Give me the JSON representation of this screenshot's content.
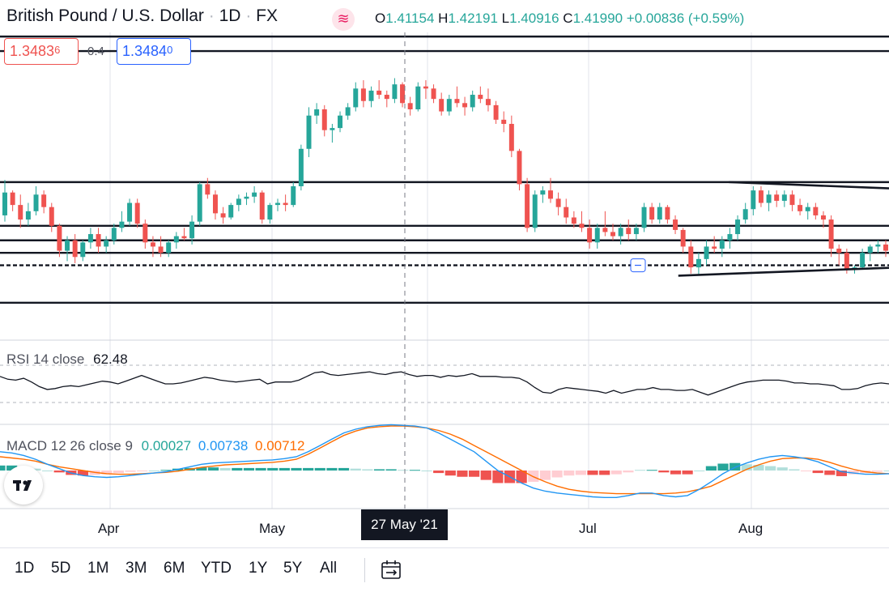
{
  "header": {
    "symbol_title": "British Pound / U.S. Dollar",
    "interval": "1D",
    "exchange": "FX",
    "sep": "·",
    "feed_icon": "data-feed-icon",
    "ohlc": {
      "o_label": "O",
      "o_value": "1.41154",
      "h_label": "H",
      "h_value": "1.42191",
      "l_label": "L",
      "l_value": "1.40916",
      "c_label": "C",
      "c_value": "1.41990",
      "change": "+0.00836 (+0.59%)"
    }
  },
  "trade": {
    "sell_main": "1.3483",
    "sell_small": "6",
    "spread": "0.4",
    "buy_main": "1.3484",
    "buy_small": "0"
  },
  "rsi": {
    "label": "RSI 14 close",
    "value": "62.48"
  },
  "macd": {
    "label": "MACD 12 26 close 9",
    "hist_value": "0.00027",
    "macd_value": "0.00738",
    "signal_value": "0.00712"
  },
  "x_axis": {
    "labels": [
      "Apr",
      "May",
      "Jul",
      "Aug"
    ],
    "crosshair_label": "27 May '21"
  },
  "toolbar": {
    "timeframes": [
      "1D",
      "5D",
      "1M",
      "3M",
      "6M",
      "YTD",
      "1Y",
      "5Y",
      "All"
    ],
    "date_range_icon": "calendar-range-icon"
  },
  "colors": {
    "up": "#26a69a",
    "down": "#ef5350",
    "macd": "#2196f3",
    "signal": "#ff6d00",
    "rsi": "#131722"
  },
  "chart_data": {
    "type": "candlestick",
    "title": "British Pound / U.S. Dollar · 1D · FX",
    "ylim": [
      1.352,
      1.426
    ],
    "x_tick_labels": [
      "Apr",
      "May",
      "Jul",
      "Aug"
    ],
    "candles_ohlc": [
      [
        1.382,
        1.3905,
        1.3805,
        1.3875
      ],
      [
        1.3875,
        1.388,
        1.383,
        1.3845
      ],
      [
        1.3845,
        1.387,
        1.379,
        1.381
      ],
      [
        1.381,
        1.385,
        1.3795,
        1.383
      ],
      [
        1.383,
        1.389,
        1.382,
        1.387
      ],
      [
        1.387,
        1.388,
        1.3825,
        1.384
      ],
      [
        1.384,
        1.385,
        1.378,
        1.3795
      ],
      [
        1.3795,
        1.38,
        1.372,
        1.3735
      ],
      [
        1.3735,
        1.377,
        1.371,
        1.376
      ],
      [
        1.376,
        1.3775,
        1.3705,
        1.372
      ],
      [
        1.372,
        1.376,
        1.371,
        1.3755
      ],
      [
        1.3755,
        1.379,
        1.374,
        1.3775
      ],
      [
        1.3775,
        1.379,
        1.373,
        1.3745
      ],
      [
        1.3745,
        1.377,
        1.373,
        1.376
      ],
      [
        1.376,
        1.38,
        1.375,
        1.379
      ],
      [
        1.379,
        1.383,
        1.378,
        1.3805
      ],
      [
        1.3805,
        1.386,
        1.3795,
        1.385
      ],
      [
        1.385,
        1.386,
        1.379,
        1.38
      ],
      [
        1.38,
        1.381,
        1.374,
        1.3755
      ],
      [
        1.3755,
        1.377,
        1.372,
        1.3745
      ],
      [
        1.3745,
        1.377,
        1.372,
        1.373
      ],
      [
        1.373,
        1.376,
        1.372,
        1.3755
      ],
      [
        1.3755,
        1.378,
        1.374,
        1.377
      ],
      [
        1.377,
        1.379,
        1.376,
        1.3765
      ],
      [
        1.3765,
        1.382,
        1.375,
        1.3805
      ],
      [
        1.3805,
        1.39,
        1.3795,
        1.3895
      ],
      [
        1.3895,
        1.391,
        1.386,
        1.387
      ],
      [
        1.387,
        1.388,
        1.381,
        1.3825
      ],
      [
        1.3825,
        1.384,
        1.38,
        1.3815
      ],
      [
        1.3815,
        1.385,
        1.381,
        1.3845
      ],
      [
        1.3845,
        1.387,
        1.383,
        1.386
      ],
      [
        1.386,
        1.3875,
        1.3845,
        1.3865
      ],
      [
        1.3865,
        1.389,
        1.385,
        1.3875
      ],
      [
        1.3875,
        1.388,
        1.38,
        1.381
      ],
      [
        1.381,
        1.385,
        1.38,
        1.3845
      ],
      [
        1.3845,
        1.386,
        1.383,
        1.385
      ],
      [
        1.385,
        1.387,
        1.383,
        1.3845
      ],
      [
        1.3845,
        1.39,
        1.384,
        1.389
      ],
      [
        1.389,
        1.399,
        1.388,
        1.398
      ],
      [
        1.398,
        1.408,
        1.396,
        1.406
      ],
      [
        1.406,
        1.409,
        1.404,
        1.4075
      ],
      [
        1.4075,
        1.4085,
        1.401,
        1.4025
      ],
      [
        1.4025,
        1.404,
        1.3995,
        1.403
      ],
      [
        1.403,
        1.407,
        1.402,
        1.406
      ],
      [
        1.406,
        1.409,
        1.405,
        1.408
      ],
      [
        1.408,
        1.414,
        1.407,
        1.4125
      ],
      [
        1.4125,
        1.4145,
        1.408,
        1.4095
      ],
      [
        1.4095,
        1.413,
        1.408,
        1.412
      ],
      [
        1.412,
        1.4145,
        1.41,
        1.411
      ],
      [
        1.411,
        1.412,
        1.408,
        1.41
      ],
      [
        1.41,
        1.415,
        1.409,
        1.4135
      ],
      [
        1.4135,
        1.414,
        1.408,
        1.409
      ],
      [
        1.409,
        1.4105,
        1.406,
        1.4075
      ],
      [
        1.4075,
        1.414,
        1.407,
        1.413
      ],
      [
        1.413,
        1.4145,
        1.41,
        1.4125
      ],
      [
        1.4125,
        1.4135,
        1.409,
        1.41
      ],
      [
        1.41,
        1.4115,
        1.406,
        1.407
      ],
      [
        1.407,
        1.411,
        1.406,
        1.41
      ],
      [
        1.41,
        1.413,
        1.408,
        1.409
      ],
      [
        1.409,
        1.4105,
        1.406,
        1.408
      ],
      [
        1.408,
        1.412,
        1.407,
        1.411
      ],
      [
        1.411,
        1.413,
        1.409,
        1.41
      ],
      [
        1.41,
        1.4125,
        1.407,
        1.4085
      ],
      [
        1.4085,
        1.4095,
        1.404,
        1.405
      ],
      [
        1.405,
        1.407,
        1.402,
        1.404
      ],
      [
        1.404,
        1.406,
        1.396,
        1.3975
      ],
      [
        1.3975,
        1.398,
        1.388,
        1.3895
      ],
      [
        1.3895,
        1.391,
        1.378,
        1.379
      ],
      [
        1.379,
        1.388,
        1.378,
        1.387
      ],
      [
        1.387,
        1.389,
        1.385,
        1.388
      ],
      [
        1.388,
        1.391,
        1.385,
        1.386
      ],
      [
        1.386,
        1.3875,
        1.382,
        1.384
      ],
      [
        1.384,
        1.386,
        1.38,
        1.3815
      ],
      [
        1.3815,
        1.383,
        1.379,
        1.38
      ],
      [
        1.38,
        1.383,
        1.378,
        1.379
      ],
      [
        1.379,
        1.381,
        1.374,
        1.3755
      ],
      [
        1.3755,
        1.38,
        1.374,
        1.379
      ],
      [
        1.379,
        1.383,
        1.377,
        1.378
      ],
      [
        1.378,
        1.38,
        1.376,
        1.377
      ],
      [
        1.377,
        1.38,
        1.375,
        1.379
      ],
      [
        1.379,
        1.381,
        1.376,
        1.3775
      ],
      [
        1.3775,
        1.38,
        1.376,
        1.379
      ],
      [
        1.379,
        1.385,
        1.378,
        1.384
      ],
      [
        1.384,
        1.385,
        1.38,
        1.381
      ],
      [
        1.381,
        1.385,
        1.38,
        1.384
      ],
      [
        1.384,
        1.3845,
        1.38,
        1.381
      ],
      [
        1.381,
        1.382,
        1.3775,
        1.3785
      ],
      [
        1.3785,
        1.379,
        1.373,
        1.3745
      ],
      [
        1.3745,
        1.376,
        1.368,
        1.3695
      ],
      [
        1.3695,
        1.373,
        1.3675,
        1.3715
      ],
      [
        1.3715,
        1.376,
        1.37,
        1.3745
      ],
      [
        1.3745,
        1.377,
        1.373,
        1.374
      ],
      [
        1.374,
        1.377,
        1.372,
        1.376
      ],
      [
        1.376,
        1.379,
        1.374,
        1.3775
      ],
      [
        1.3775,
        1.382,
        1.376,
        1.381
      ],
      [
        1.381,
        1.385,
        1.38,
        1.3835
      ],
      [
        1.3835,
        1.389,
        1.382,
        1.388
      ],
      [
        1.388,
        1.389,
        1.384,
        1.385
      ],
      [
        1.385,
        1.388,
        1.383,
        1.387
      ],
      [
        1.387,
        1.388,
        1.384,
        1.3855
      ],
      [
        1.3855,
        1.388,
        1.384,
        1.387
      ],
      [
        1.387,
        1.388,
        1.383,
        1.3845
      ],
      [
        1.3845,
        1.386,
        1.382,
        1.383
      ],
      [
        1.383,
        1.385,
        1.381,
        1.384
      ],
      [
        1.384,
        1.385,
        1.381,
        1.382
      ],
      [
        1.382,
        1.383,
        1.379,
        1.381
      ],
      [
        1.381,
        1.382,
        1.372,
        1.374
      ],
      [
        1.374,
        1.375,
        1.37,
        1.373
      ],
      [
        1.373,
        1.374,
        1.368,
        1.369
      ],
      [
        1.369,
        1.37,
        1.368,
        1.3695
      ],
      [
        1.3695,
        1.374,
        1.369,
        1.373
      ],
      [
        1.373,
        1.375,
        1.371,
        1.3745
      ],
      [
        1.3745,
        1.376,
        1.373,
        1.375
      ],
      [
        1.375,
        1.376,
        1.372,
        1.3735
      ]
    ],
    "horizontal_levels": [
      1.425,
      1.4215,
      1.39,
      1.3795,
      1.376,
      1.373,
      1.37,
      1.361
    ],
    "dashed_level": 1.37,
    "trendlines": [
      {
        "from": [
          0.82,
          1.39
        ],
        "to": [
          1.0,
          1.3885
        ]
      },
      {
        "from": [
          0.763,
          1.3675
        ],
        "to": [
          1.0,
          1.3694
        ]
      }
    ],
    "rsi_values": [
      58,
      55,
      54,
      56,
      52,
      47,
      44,
      45,
      47,
      48,
      47,
      49,
      51,
      53,
      52,
      50,
      53,
      56,
      59,
      56,
      53,
      50,
      50,
      51,
      53,
      55,
      57,
      56,
      54,
      53,
      52,
      53,
      54,
      55,
      50,
      52,
      52,
      52,
      54,
      58,
      62,
      63,
      60,
      59,
      60,
      61,
      62,
      63,
      61,
      60,
      62,
      63,
      60,
      58,
      59,
      59,
      57,
      59,
      58,
      59,
      61,
      58,
      58,
      58,
      57,
      57,
      56,
      52,
      46,
      41,
      40,
      44,
      46,
      45,
      44,
      43,
      42,
      40,
      43,
      40,
      42,
      44,
      44,
      46,
      44,
      44,
      43,
      43,
      44,
      41,
      38,
      41,
      44,
      47,
      50,
      52,
      53,
      54,
      54,
      54,
      53,
      51,
      51,
      50,
      50,
      49,
      48,
      44,
      44,
      45,
      48,
      50,
      51,
      50
    ],
    "macd_series": {
      "macd_values": [
        0.003,
        0.0028,
        0.0024,
        0.0018,
        0.001,
        0.0003,
        -0.0004,
        -0.0008,
        -0.001,
        -0.0011,
        -0.001,
        -0.0008,
        -0.0006,
        -0.0004,
        -0.0002,
        0.0002,
        0.0006,
        0.001,
        0.0012,
        0.0013,
        0.0014,
        0.0015,
        0.0016,
        0.0017,
        0.0019,
        0.0022,
        0.003,
        0.004,
        0.005,
        0.006,
        0.0066,
        0.007,
        0.0072,
        0.0073,
        0.0072,
        0.0071,
        0.0068,
        0.006,
        0.005,
        0.004,
        0.003,
        0.0015,
        0.0,
        -0.001,
        -0.002,
        -0.0028,
        -0.0033,
        -0.0036,
        -0.0038,
        -0.004,
        -0.0042,
        -0.0043,
        -0.0043,
        -0.004,
        -0.0036,
        -0.0036,
        -0.004,
        -0.0042,
        -0.004,
        -0.003,
        -0.0018,
        -0.0005,
        0.0005,
        0.0012,
        0.0018,
        0.0022,
        0.0024,
        0.0022,
        0.0019,
        0.0014,
        0.0006,
        -0.0002,
        -0.0004,
        -0.0006,
        -0.0006,
        -0.0005
      ],
      "signal_values": [
        0.0022,
        0.002,
        0.0018,
        0.0015,
        0.001,
        0.0006,
        0.0003,
        0.0,
        -0.0003,
        -0.0005,
        -0.0006,
        -0.0006,
        -0.0005,
        -0.0004,
        -0.0003,
        -0.0001,
        0.0002,
        0.0005,
        0.0007,
        0.0009,
        0.001,
        0.0011,
        0.0012,
        0.0013,
        0.0015,
        0.0018,
        0.0026,
        0.0036,
        0.0046,
        0.0056,
        0.0063,
        0.0068,
        0.007,
        0.0071,
        0.0071,
        0.007,
        0.0068,
        0.0064,
        0.0058,
        0.005,
        0.004,
        0.003,
        0.002,
        0.001,
        0.0,
        -0.001,
        -0.0018,
        -0.0025,
        -0.003,
        -0.0033,
        -0.0035,
        -0.0036,
        -0.0037,
        -0.0037,
        -0.0037,
        -0.0037,
        -0.0037,
        -0.0036,
        -0.0034,
        -0.003,
        -0.0025,
        -0.0016,
        -0.0007,
        0.0002,
        0.0009,
        0.0015,
        0.0019,
        0.002,
        0.002,
        0.0018,
        0.0013,
        0.0007,
        0.0002,
        -0.0002,
        -0.0004,
        -0.0005
      ],
      "histogram_values": [
        0.0008,
        0.0008,
        0.0006,
        0.0003,
        0.0,
        -0.0003,
        -0.0007,
        -0.0008,
        -0.0007,
        -0.0006,
        -0.0004,
        -0.0002,
        -0.0001,
        0.0,
        0.0001,
        0.0003,
        0.0004,
        0.0005,
        0.0005,
        0.0004,
        0.0004,
        0.0004,
        0.0004,
        0.0004,
        0.0004,
        0.0004,
        0.0004,
        0.0004,
        0.0004,
        0.0004,
        0.0003,
        0.0002,
        0.0002,
        0.0002,
        0.0001,
        0.0001,
        0.0,
        -0.0004,
        -0.0008,
        -0.001,
        -0.001,
        -0.0015,
        -0.002,
        -0.002,
        -0.002,
        -0.0018,
        -0.0015,
        -0.0011,
        -0.0008,
        -0.0007,
        -0.0007,
        -0.0007,
        -0.0006,
        -0.0003,
        0.0001,
        0.0001,
        -0.0003,
        -0.0006,
        -0.0006,
        0.0,
        0.0007,
        0.0011,
        0.0012,
        0.001,
        0.0009,
        0.0007,
        0.0005,
        0.0002,
        -0.0001,
        -0.0004,
        -0.0007,
        -0.0009,
        -0.0006,
        -0.0004,
        -0.0002,
        0.0
      ]
    }
  }
}
